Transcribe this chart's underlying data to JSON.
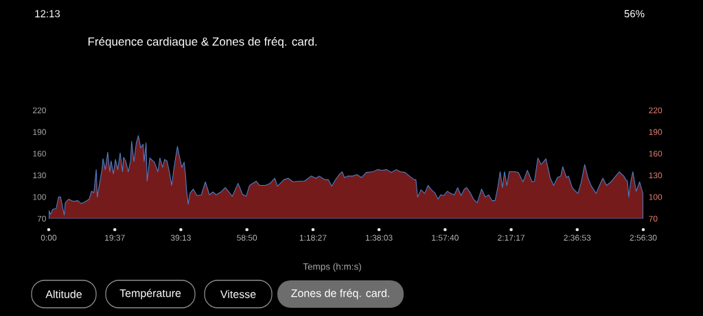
{
  "chart_data": {
    "type": "area",
    "title": "Fréquence cardiaque & Zones de fréq. card.",
    "xlabel": "Temps (h:m:s)",
    "x": [
      0.1,
      0.5,
      1.2,
      2.2,
      2.9,
      3.5,
      4.6,
      4.9,
      5.9,
      7.3,
      8.6,
      9.6,
      11.0,
      12.0,
      12.7,
      13.4,
      14.1,
      14.4,
      15.1,
      15.8,
      16.1,
      16.8,
      17.5,
      18.1,
      18.5,
      19.2,
      19.8,
      20.5,
      21.2,
      21.9,
      22.2,
      22.9,
      23.6,
      24.3,
      24.6,
      25.3,
      26.0,
      26.6,
      27.3,
      28.0,
      28.3,
      28.9,
      29.2,
      30.0,
      31.4,
      32.4,
      33.0,
      33.8,
      34.4,
      35.1,
      35.8,
      36.5,
      37.2,
      38.2,
      38.9,
      39.5,
      40.2,
      40.6,
      40.9,
      41.4,
      41.9,
      42.9,
      44.0,
      45.3,
      46.5,
      47.7,
      48.7,
      49.7,
      51.1,
      52.4,
      53.5,
      54.5,
      56.2,
      57.5,
      58.6,
      59.6,
      61.6,
      62.6,
      64.3,
      65.7,
      67.1,
      67.9,
      69.8,
      71.1,
      72.5,
      74.2,
      75.9,
      77.9,
      79.3,
      80.3,
      82.0,
      83.0,
      84.0,
      85.4,
      86.4,
      87.1,
      87.8,
      88.8,
      90.2,
      91.5,
      92.9,
      94.2,
      96.3,
      97.6,
      99.0,
      100.3,
      101.7,
      103.2,
      104.4,
      105.8,
      107.1,
      108.5,
      109.0,
      109.5,
      110.5,
      111.6,
      112.6,
      113.6,
      114.6,
      115.6,
      116.3,
      117.3,
      118.3,
      119.4,
      120.4,
      121.4,
      122.4,
      123.4,
      124.1,
      125.1,
      126.1,
      127.2,
      128.5,
      129.6,
      130.6,
      131.6,
      132.5,
      133.3,
      134.0,
      134.7,
      135.3,
      136.0,
      136.7,
      138.4,
      139.4,
      140.8,
      142.1,
      143.5,
      144.2,
      145.2,
      146.2,
      147.6,
      148.9,
      149.9,
      151.0,
      152.0,
      152.6,
      153.7,
      154.3,
      155.4,
      156.4,
      157.1,
      158.1,
      159.1,
      160.1,
      161.1,
      162.5,
      163.5,
      164.5,
      165.6,
      166.9,
      168.3,
      169.4,
      170.7,
      171.3,
      171.8,
      172.2,
      172.7,
      173.4,
      174.4,
      175.4,
      176.4
    ],
    "values": [
      81,
      76,
      83,
      84,
      100,
      100,
      75,
      92,
      97,
      94,
      95,
      91,
      94,
      97,
      108,
      106,
      138,
      100,
      119,
      138,
      153,
      138,
      162,
      135,
      150,
      132,
      152,
      138,
      161,
      135,
      155,
      149,
      135,
      150,
      177,
      149,
      175,
      185,
      168,
      173,
      149,
      175,
      122,
      154,
      148,
      135,
      154,
      141,
      152,
      150,
      135,
      116,
      141,
      170,
      154,
      141,
      148,
      131,
      110,
      90,
      105,
      111,
      102,
      103,
      121,
      103,
      107,
      103,
      107,
      113,
      107,
      101,
      119,
      104,
      101,
      116,
      122,
      116,
      116,
      119,
      126,
      115,
      124,
      126,
      121,
      122,
      122,
      129,
      126,
      129,
      124,
      124,
      115,
      126,
      132,
      135,
      127,
      129,
      129,
      131,
      127,
      134,
      135,
      138,
      137,
      138,
      134,
      138,
      135,
      134,
      129,
      124,
      124,
      100,
      110,
      105,
      116,
      110,
      106,
      97,
      103,
      102,
      108,
      105,
      103,
      113,
      102,
      111,
      113,
      106,
      97,
      92,
      111,
      100,
      103,
      95,
      95,
      113,
      135,
      113,
      135,
      116,
      135,
      135,
      134,
      121,
      137,
      121,
      122,
      154,
      145,
      153,
      126,
      116,
      127,
      129,
      142,
      127,
      129,
      113,
      108,
      105,
      121,
      145,
      126,
      115,
      105,
      116,
      126,
      116,
      121,
      129,
      135,
      129,
      124,
      122,
      100,
      119,
      135,
      108,
      121,
      105
    ],
    "color": "#761b1b",
    "xlim": [
      0,
      176.5
    ],
    "xticks": [
      {
        "value": 0,
        "label": "0:00"
      },
      {
        "value": 19.617,
        "label": "19:37"
      },
      {
        "value": 39.217,
        "label": "39:13"
      },
      {
        "value": 58.833,
        "label": "58:50"
      },
      {
        "value": 78.45,
        "label": "1:18:27"
      },
      {
        "value": 98.05,
        "label": "1:38:03"
      },
      {
        "value": 117.667,
        "label": "1:57:40"
      },
      {
        "value": 137.283,
        "label": "2:17:17"
      },
      {
        "value": 156.883,
        "label": "2:36:53"
      },
      {
        "value": 176.5,
        "label": "2:56:30"
      }
    ],
    "ylim": [
      70,
      220
    ],
    "yticks": [
      70,
      100,
      130,
      160,
      190,
      220
    ],
    "y2lim": [
      70,
      220
    ],
    "y2ticks": [
      70,
      100,
      130,
      160,
      190,
      220
    ],
    "annotations": [
      "12:13",
      "56%",
      "Altitude",
      "Température",
      "Vitesse",
      "Zones de fréq. card."
    ]
  }
}
